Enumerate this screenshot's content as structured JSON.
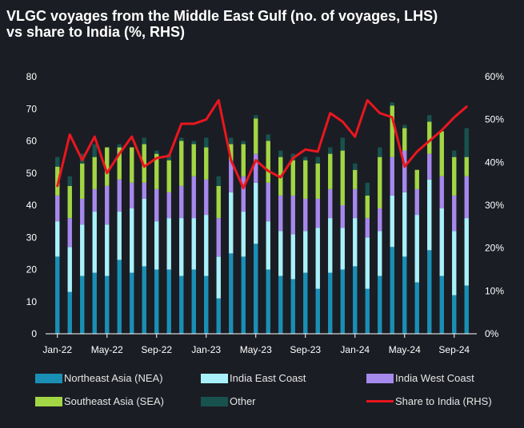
{
  "chart_data": {
    "type": "bar",
    "title": "VLGC voyages from the Middle East Gulf (no. of voyages, LHS)\nvs share to India (%, RHS)",
    "x_tick_labels": [
      "Jan-22",
      "May-22",
      "Sep-22",
      "Jan-23",
      "May-23",
      "Sep-23",
      "Jan-24",
      "May-24",
      "Sep-24"
    ],
    "x_tick_indices": [
      0,
      4,
      8,
      12,
      16,
      20,
      24,
      28,
      32
    ],
    "categories": [
      "Jan-22",
      "Feb-22",
      "Mar-22",
      "Apr-22",
      "May-22",
      "Jun-22",
      "Jul-22",
      "Aug-22",
      "Sep-22",
      "Oct-22",
      "Nov-22",
      "Dec-22",
      "Jan-23",
      "Feb-23",
      "Mar-23",
      "Apr-23",
      "May-23",
      "Jun-23",
      "Jul-23",
      "Aug-23",
      "Sep-23",
      "Oct-23",
      "Nov-23",
      "Dec-23",
      "Jan-24",
      "Feb-24",
      "Mar-24",
      "Apr-24",
      "May-24",
      "Jun-24",
      "Jul-24",
      "Aug-24",
      "Sep-24",
      "Oct-24"
    ],
    "ylim_left": [
      0,
      80
    ],
    "y_ticks_left": [
      "0",
      "10",
      "20",
      "30",
      "40",
      "50",
      "60",
      "70",
      "80"
    ],
    "ylim_right": [
      0,
      60
    ],
    "y_ticks_right": [
      "0%",
      "10%",
      "20%",
      "30%",
      "40%",
      "50%",
      "60%"
    ],
    "series": [
      {
        "name": "Northeast Asia (NEA)",
        "color": "#1a8fb5",
        "values": [
          24,
          13,
          18,
          19,
          18,
          23,
          19,
          21,
          20,
          20,
          18,
          20,
          18,
          11,
          25,
          24,
          28,
          20,
          18,
          17,
          19,
          14,
          19,
          20,
          21,
          14,
          18,
          27,
          24,
          16,
          26,
          18,
          12,
          15
        ]
      },
      {
        "name": "India East Coast",
        "color": "#a8f1fa",
        "values": [
          11,
          14,
          16,
          19,
          16,
          15,
          20,
          21,
          15,
          16,
          18,
          16,
          19,
          13,
          19,
          14,
          19,
          15,
          14,
          14,
          13,
          19,
          17,
          13,
          15,
          16,
          14,
          16,
          20,
          21,
          22,
          21,
          20,
          21
        ]
      },
      {
        "name": "India West Coast",
        "color": "#a689ec",
        "values": [
          8,
          9,
          8,
          7,
          12,
          10,
          8,
          5,
          10,
          8,
          10,
          13,
          11,
          12,
          10,
          11,
          9,
          12,
          11,
          12,
          10,
          9,
          9,
          7,
          9,
          6,
          7,
          12,
          13,
          8,
          8,
          10,
          11,
          13
        ]
      },
      {
        "name": "Southeast Asia (SEA)",
        "color": "#a2d645",
        "values": [
          9,
          10,
          11,
          10,
          12,
          10,
          11,
          12,
          11,
          10,
          14,
          10,
          10,
          10,
          5,
          10,
          11,
          13,
          12,
          11,
          12,
          11,
          11,
          17,
          6,
          7,
          16,
          16,
          7,
          6,
          10,
          14,
          12,
          6
        ]
      },
      {
        "name": "Other",
        "color": "#18524f",
        "values": [
          3,
          3,
          3,
          4,
          0,
          1,
          0,
          2,
          1,
          2,
          1,
          1,
          3,
          3,
          2,
          1,
          1,
          2,
          2,
          2,
          1,
          2,
          2,
          4,
          2,
          4,
          3,
          1,
          1,
          0,
          2,
          0,
          2,
          9
        ]
      },
      {
        "name": "Share to India (RHS)",
        "color": "#ea161e",
        "axis": "right",
        "type": "line",
        "values": [
          34.5,
          46.5,
          40.5,
          46,
          37.5,
          42,
          46,
          39,
          41,
          41.5,
          49,
          49,
          50,
          54.5,
          40.5,
          34,
          40.5,
          38,
          36.5,
          41,
          43,
          42.5,
          51.5,
          49.5,
          46,
          54.5,
          51.5,
          50.5,
          39,
          42.5,
          45,
          47.5,
          50.5,
          53
        ]
      }
    ],
    "legend": [
      {
        "label": "Northeast Asia (NEA)",
        "kind": "bar",
        "color": "#1a8fb5"
      },
      {
        "label": "India East Coast",
        "kind": "bar",
        "color": "#a8f1fa"
      },
      {
        "label": "India West Coast",
        "kind": "bar",
        "color": "#a689ec"
      },
      {
        "label": "Southeast Asia (SEA)",
        "kind": "bar",
        "color": "#a2d645"
      },
      {
        "label": "Other",
        "kind": "bar",
        "color": "#18524f"
      },
      {
        "label": "Share to India (RHS)",
        "kind": "line",
        "color": "#ea161e"
      }
    ],
    "legend_position": "bottom",
    "grid": false
  }
}
